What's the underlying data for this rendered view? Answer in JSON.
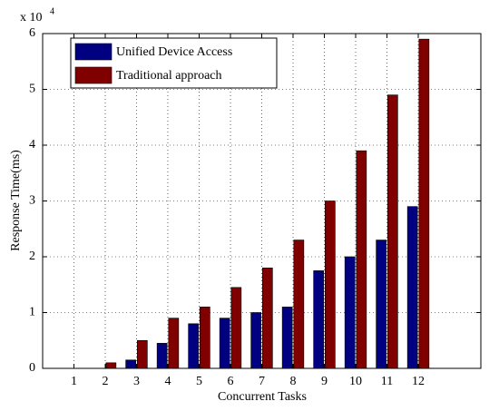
{
  "chart_data": {
    "type": "bar",
    "xlabel": "Concurrent Tasks",
    "ylabel": "Response Time(ms)",
    "y_multiplier": "x 10",
    "y_multiplier_exp": "4",
    "x": [
      1,
      2,
      3,
      4,
      5,
      6,
      7,
      8,
      9,
      10,
      11,
      12
    ],
    "series": [
      {
        "name": "Unified Device Access",
        "color": "#000080",
        "values": [
          0,
          0,
          0.15,
          0.45,
          0.8,
          0.9,
          1.0,
          1.1,
          1.75,
          2.0,
          2.3,
          2.9
        ]
      },
      {
        "name": "Traditional approach",
        "color": "#800000",
        "values": [
          0,
          0.1,
          0.5,
          0.9,
          1.1,
          1.45,
          1.8,
          2.3,
          3.0,
          3.9,
          4.9,
          5.9
        ]
      }
    ],
    "xlim": [
      0,
      14
    ],
    "xticks": [
      1,
      2,
      3,
      4,
      5,
      6,
      7,
      8,
      9,
      10,
      11,
      12
    ],
    "ylim": [
      0,
      6
    ],
    "yticks": [
      0,
      1,
      2,
      3,
      4,
      5,
      6
    ],
    "grid": true,
    "legend": "upper left"
  }
}
